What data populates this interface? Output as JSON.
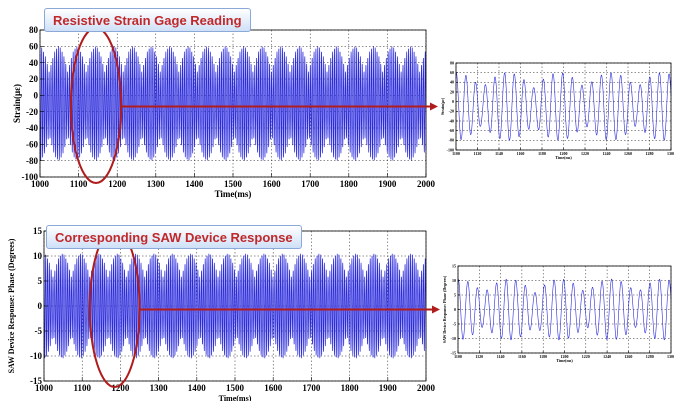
{
  "chart_data": [
    {
      "type": "line",
      "title": "Resistive Strain Gage Reading",
      "xlabel": "Time(ms)",
      "ylabel": "Strain(με)",
      "xlim": [
        1000,
        2000
      ],
      "ylim": [
        -100,
        80
      ],
      "xticks": [
        1000,
        1100,
        1200,
        1300,
        1400,
        1500,
        1600,
        1700,
        1800,
        1900,
        2000
      ],
      "yticks": [
        -100,
        -80,
        -60,
        -40,
        -20,
        0,
        20,
        40,
        60,
        80
      ],
      "grid": true,
      "line_color": "#2b2bdc",
      "signal": {
        "center": -10,
        "amplitude": 70,
        "carrier_period_ms": 4.8,
        "beat_period_ms": 48
      },
      "highlight_range": [
        1080,
        1210
      ]
    },
    {
      "type": "line",
      "xlabel": "Time(ms)",
      "ylabel": "Strain(με)",
      "xlim": [
        1100,
        1300
      ],
      "ylim": [
        -100,
        80
      ],
      "xticks": [
        1100,
        1120,
        1140,
        1160,
        1180,
        1200,
        1220,
        1240,
        1260,
        1280,
        1300
      ],
      "yticks": [
        -100,
        -80,
        -60,
        -40,
        -20,
        0,
        20,
        40,
        60,
        80
      ],
      "grid": true,
      "line_color": "#2b2bdc",
      "signal": {
        "center": -10,
        "amplitude": 70,
        "carrier_period_ms": 9,
        "beat_period_ms": 48
      }
    },
    {
      "type": "line",
      "title": "Corresponding SAW Device Response",
      "xlabel": "Time(ms)",
      "ylabel": "SAW Device Response: Phase (Degrees)",
      "xlim": [
        1000,
        2000
      ],
      "ylim": [
        -15,
        15
      ],
      "xticks": [
        1000,
        1100,
        1200,
        1300,
        1400,
        1500,
        1600,
        1700,
        1800,
        1900,
        2000
      ],
      "yticks": [
        -15,
        -10,
        -5,
        0,
        5,
        10,
        15
      ],
      "grid": true,
      "line_color": "#2b2bdc",
      "signal": {
        "center": 0,
        "amplitude": 10.5,
        "carrier_period_ms": 4.8,
        "beat_period_ms": 48
      },
      "highlight_range": [
        1120,
        1250
      ]
    },
    {
      "type": "line",
      "xlabel": "Time(ms)",
      "ylabel": "SAW Device Response: Phase (Degrees)",
      "xlim": [
        1100,
        1300
      ],
      "ylim": [
        -15,
        15
      ],
      "xticks": [
        1100,
        1120,
        1140,
        1160,
        1180,
        1200,
        1220,
        1240,
        1260,
        1280,
        1300
      ],
      "yticks": [
        -15,
        -10,
        -5,
        0,
        5,
        10,
        15
      ],
      "grid": true,
      "line_color": "#2b2bdc",
      "signal": {
        "center": 0,
        "amplitude": 10.5,
        "carrier_period_ms": 9,
        "beat_period_ms": 48
      }
    }
  ],
  "annotation_color": "#b01c1c"
}
